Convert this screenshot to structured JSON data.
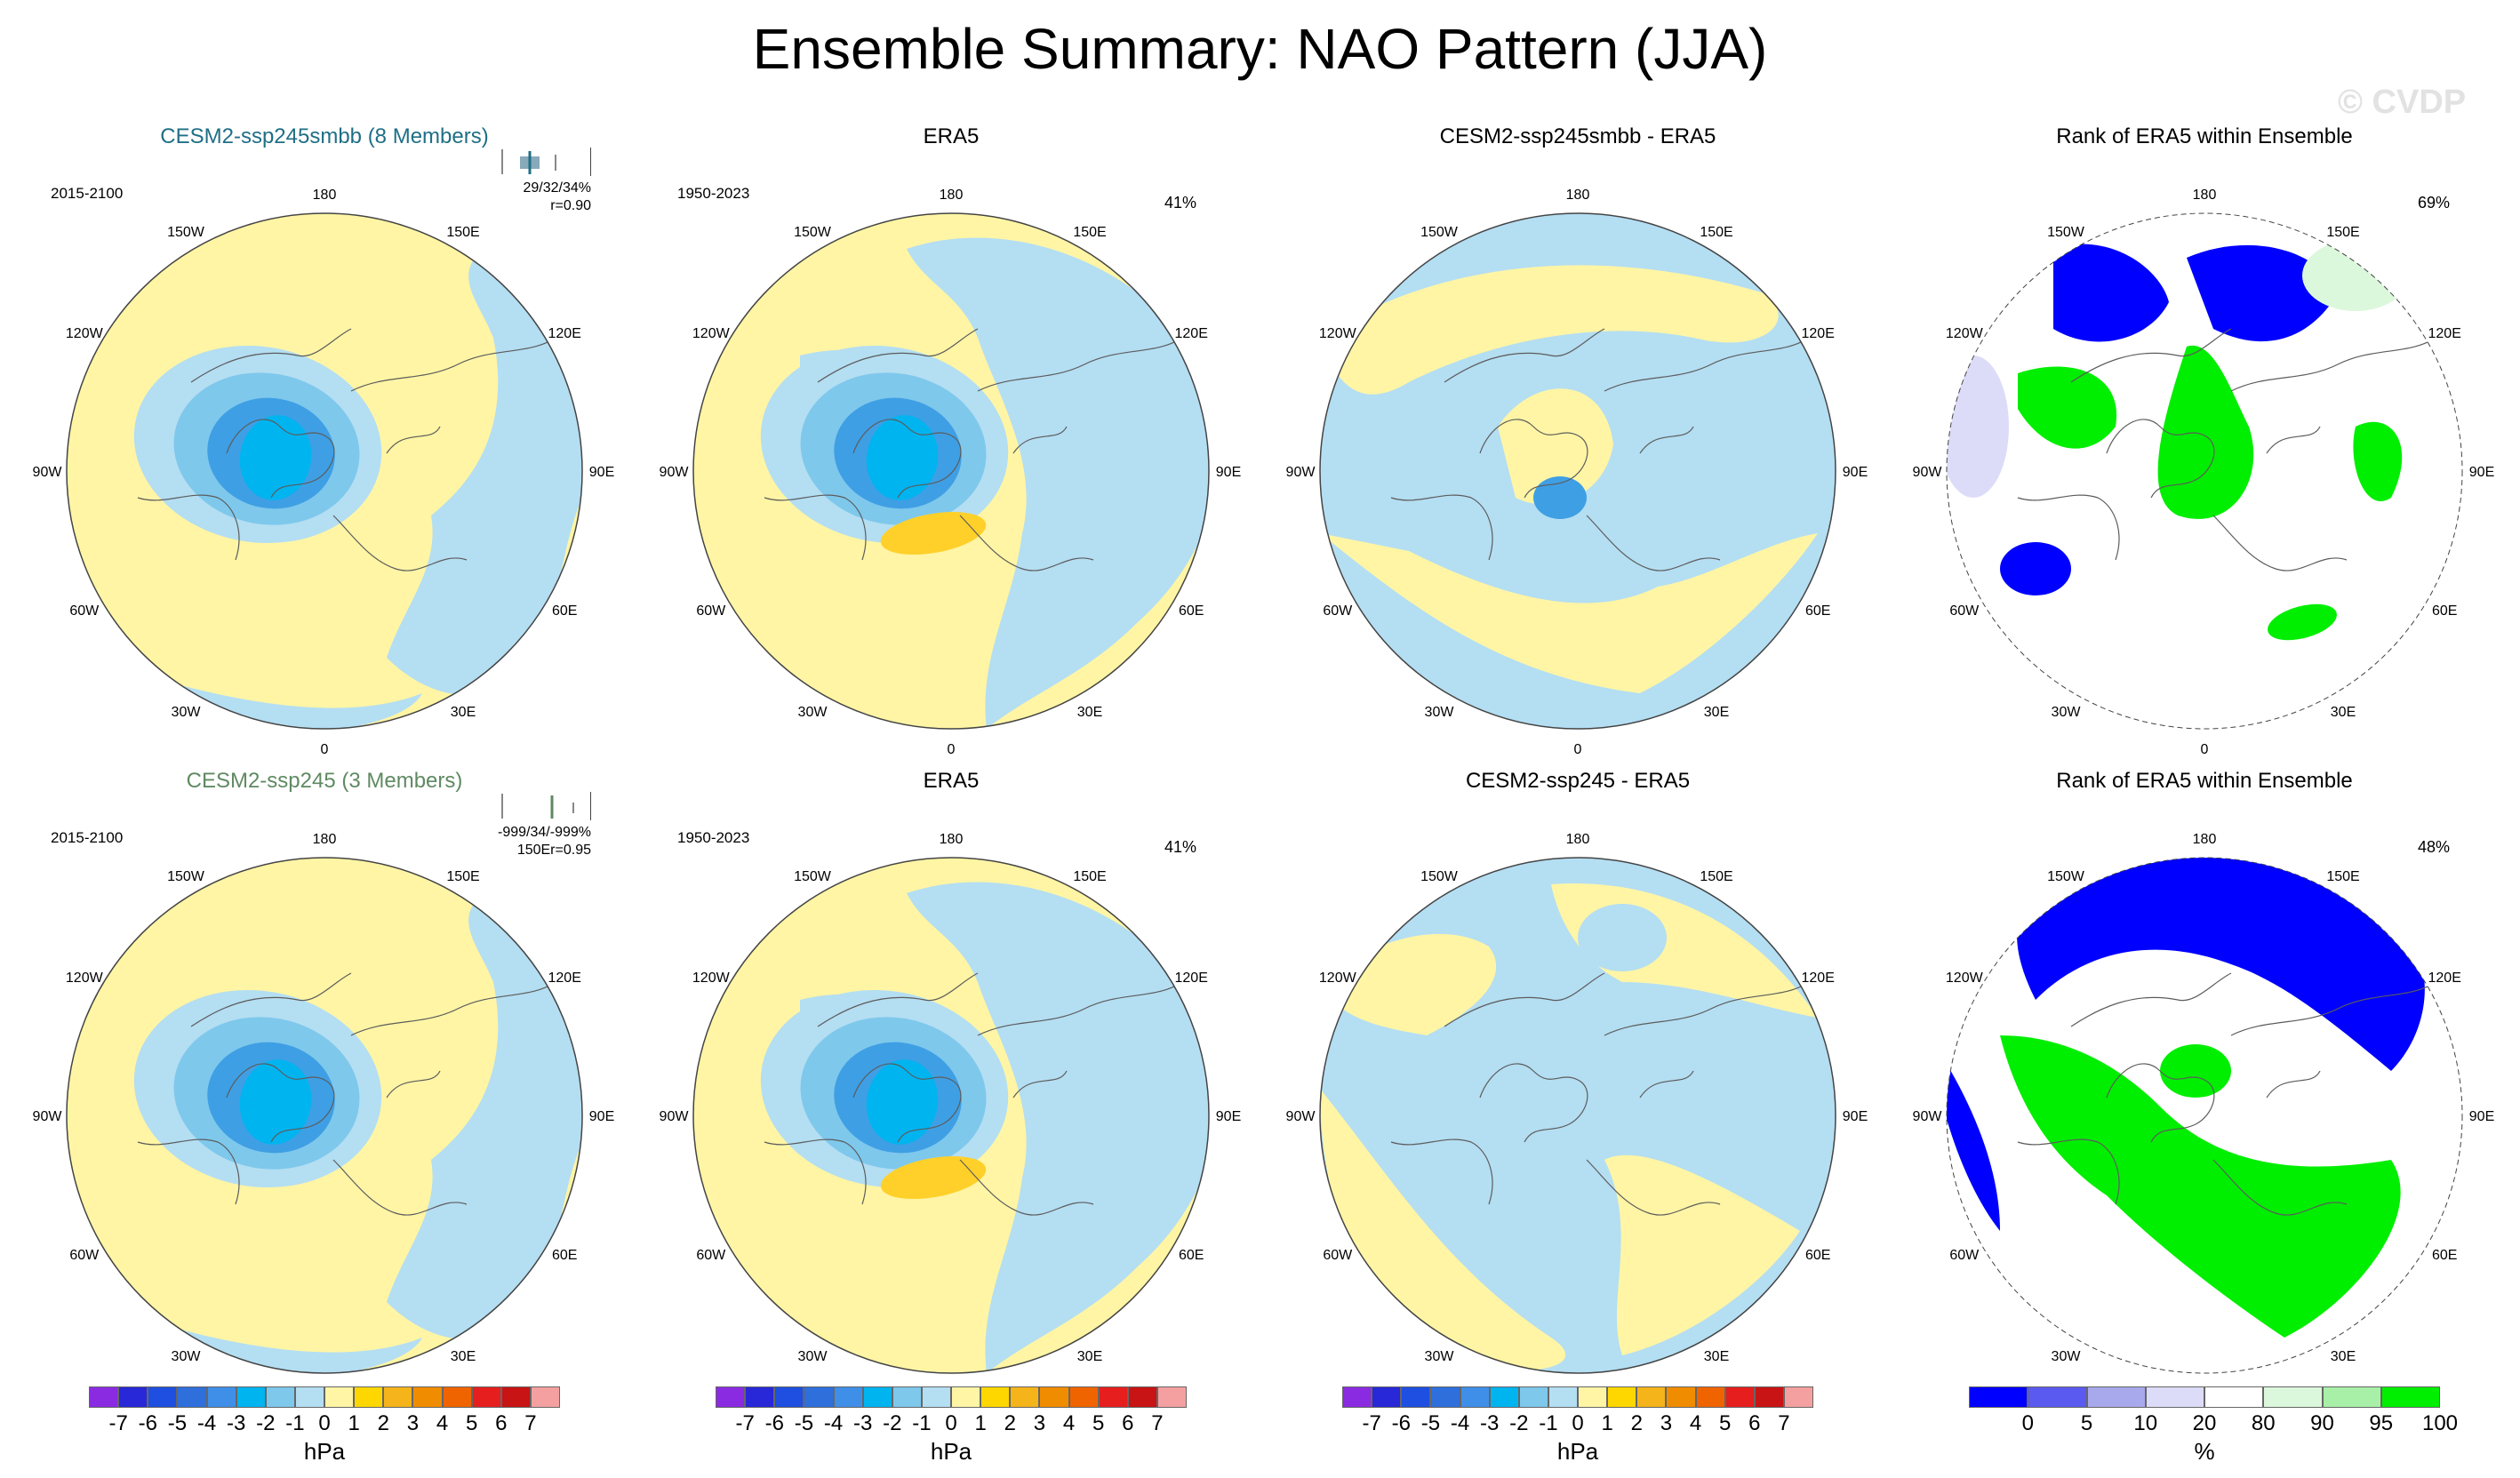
{
  "title": "Ensemble Summary: NAO Pattern (JJA)",
  "watermark": "© CVDP",
  "lon_labels": [
    "180",
    "150E",
    "120E",
    "90E",
    "60E",
    "30E",
    "0",
    "30W",
    "60W",
    "90W",
    "120W",
    "150W"
  ],
  "row1": {
    "p1": {
      "title": "CESM2-ssp245smbb (8 Members)",
      "period": "2015-2100",
      "stats1": "29/32/34%",
      "stats2": "r=0.90"
    },
    "p2": {
      "title": "ERA5",
      "period": "1950-2023",
      "pct": "41%"
    },
    "p3": {
      "title": "CESM2-ssp245smbb - ERA5"
    },
    "p4": {
      "title": "Rank of ERA5 within Ensemble",
      "pct": "69%"
    }
  },
  "row2": {
    "p1": {
      "title": "CESM2-ssp245 (3 Members)",
      "period": "2015-2100",
      "stats1": "-999/34/-999%",
      "stats2": "150Er=0.95"
    },
    "p2": {
      "title": "ERA5",
      "period": "1950-2023",
      "pct": "41%"
    },
    "p3": {
      "title": "CESM2-ssp245 - ERA5"
    },
    "p4": {
      "title": "Rank of ERA5 within Ensemble",
      "pct": "48%"
    }
  },
  "colorbar_hpa": {
    "label": "hPa",
    "ticks": [
      "-7",
      "-6",
      "-5",
      "-4",
      "-3",
      "-2",
      "-1",
      "0",
      "1",
      "2",
      "3",
      "4",
      "5",
      "6",
      "7"
    ],
    "colors": [
      "#8a2be2",
      "#2828d8",
      "#1e4fe0",
      "#2f6fdc",
      "#3f8fe8",
      "#00b4f0",
      "#7ec8ec",
      "#b4def2",
      "#fff5a5",
      "#ffd700",
      "#f4b41a",
      "#f08c00",
      "#f06400",
      "#e61e1e",
      "#c81414",
      "#f4a0a0"
    ]
  },
  "colorbar_rank": {
    "label": "%",
    "ticks": [
      "0",
      "5",
      "10",
      "20",
      "80",
      "90",
      "95",
      "100"
    ],
    "colors": [
      "#0000ff",
      "#5a5af0",
      "#a8a8ec",
      "#dcdcf8",
      "#ffffff",
      "#dcf8dc",
      "#a8f0a8",
      "#00ee00"
    ]
  }
}
